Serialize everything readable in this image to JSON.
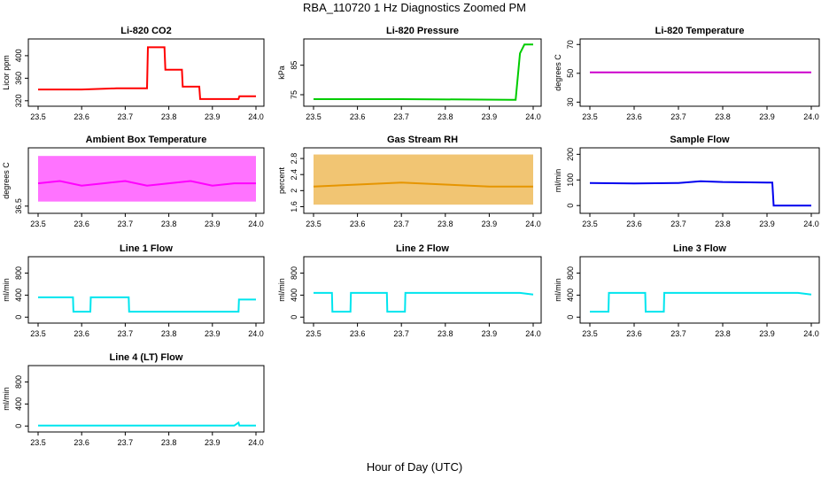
{
  "page": {
    "title": "RBA_110720  1 Hz Diagnostics Zoomed PM",
    "xlabel": "Hour of Day (UTC)"
  },
  "chart_data": [
    {
      "type": "line",
      "title": "Li-820 CO2",
      "ylabel": "Licor ppm",
      "xlim": [
        23.5,
        24.0
      ],
      "xticks": [
        23.5,
        23.6,
        23.7,
        23.8,
        23.9,
        24.0
      ],
      "ylim": [
        315,
        425
      ],
      "yticks": [
        320,
        360,
        400
      ],
      "series": [
        {
          "color": "#ff0000",
          "x": [
            23.5,
            23.6,
            23.68,
            23.75,
            23.752,
            23.79,
            23.792,
            23.83,
            23.832,
            23.87,
            23.872,
            23.96,
            23.962,
            24.0
          ],
          "y": [
            340,
            340,
            342,
            342,
            415,
            415,
            375,
            375,
            345,
            345,
            323,
            323,
            328,
            328
          ]
        }
      ]
    },
    {
      "type": "line",
      "title": "Li-820 Pressure",
      "ylabel": "kPa",
      "xlim": [
        23.5,
        24.0
      ],
      "xticks": [
        23.5,
        23.6,
        23.7,
        23.8,
        23.9,
        24.0
      ],
      "ylim": [
        72,
        93
      ],
      "yticks": [
        75,
        85
      ],
      "series": [
        {
          "color": "#00cc00",
          "x": [
            23.5,
            23.7,
            23.95,
            23.96,
            23.97,
            23.98,
            24.0
          ],
          "y": [
            73.5,
            73.5,
            73.3,
            73.3,
            89,
            92,
            92
          ]
        }
      ]
    },
    {
      "type": "line",
      "title": "Li-820 Temperature",
      "ylabel": "degrees C",
      "xlim": [
        23.5,
        24.0
      ],
      "xticks": [
        23.5,
        23.6,
        23.7,
        23.8,
        23.9,
        24.0
      ],
      "ylim": [
        29,
        72
      ],
      "yticks": [
        30,
        50,
        70
      ],
      "series": [
        {
          "color": "#cc00cc",
          "x": [
            23.5,
            24.0
          ],
          "y": [
            50.7,
            50.7
          ]
        }
      ]
    },
    {
      "type": "line",
      "title": "Ambient Box Temperature",
      "ylabel": "degrees C",
      "xlim": [
        23.5,
        24.0
      ],
      "xticks": [
        23.5,
        23.6,
        23.7,
        23.8,
        23.9,
        24.0
      ],
      "ylim": [
        36.4,
        37.72
      ],
      "yticks": [
        36.5
      ],
      "series": [
        {
          "color": "#ff00ff",
          "x": [
            23.5,
            23.55,
            23.6,
            23.65,
            23.7,
            23.75,
            23.8,
            23.85,
            23.9,
            23.95,
            24.0
          ],
          "y": [
            37.0,
            37.05,
            36.95,
            37.0,
            37.05,
            36.95,
            37.0,
            37.05,
            36.95,
            37.0,
            37.0
          ],
          "band": [
            36.6,
            37.6
          ]
        }
      ]
    },
    {
      "type": "line",
      "title": "Gas Stream RH",
      "ylabel": "percent",
      "xlim": [
        23.5,
        24.0
      ],
      "xticks": [
        23.5,
        23.6,
        23.7,
        23.8,
        23.9,
        24.0
      ],
      "ylim": [
        1.5,
        3.0
      ],
      "yticks": [
        1.6,
        2.0,
        2.4,
        2.8
      ],
      "series": [
        {
          "color": "#e69500",
          "x": [
            23.5,
            23.6,
            23.7,
            23.8,
            23.9,
            24.0
          ],
          "y": [
            2.1,
            2.15,
            2.2,
            2.15,
            2.1,
            2.1
          ],
          "band": [
            1.65,
            2.9
          ]
        }
      ]
    },
    {
      "type": "line",
      "title": "Sample Flow",
      "ylabel": "ml/min",
      "xlim": [
        23.5,
        24.0
      ],
      "xticks": [
        23.5,
        23.6,
        23.7,
        23.8,
        23.9,
        24.0
      ],
      "ylim": [
        -20,
        215
      ],
      "yticks": [
        0,
        100,
        200
      ],
      "series": [
        {
          "color": "#0000ee",
          "x": [
            23.5,
            23.6,
            23.7,
            23.75,
            23.8,
            23.9,
            23.912,
            23.915,
            24.0
          ],
          "y": [
            88,
            86,
            88,
            95,
            92,
            90,
            90,
            0,
            0
          ]
        }
      ]
    },
    {
      "type": "line",
      "title": "Line 1 Flow",
      "ylabel": "ml/min",
      "xlim": [
        23.5,
        24.0
      ],
      "xticks": [
        23.5,
        23.6,
        23.7,
        23.8,
        23.9,
        24.0
      ],
      "ylim": [
        -60,
        1050
      ],
      "yticks": [
        0,
        400,
        800
      ],
      "series": [
        {
          "color": "#00e5ee",
          "x": [
            23.5,
            23.58,
            23.581,
            23.62,
            23.621,
            23.708,
            23.709,
            23.96,
            23.961,
            24.0
          ],
          "y": [
            360,
            360,
            100,
            100,
            360,
            360,
            100,
            100,
            320,
            320
          ]
        }
      ]
    },
    {
      "type": "line",
      "title": "Line 2 Flow",
      "ylabel": "ml/min",
      "xlim": [
        23.5,
        24.0
      ],
      "xticks": [
        23.5,
        23.6,
        23.7,
        23.8,
        23.9,
        24.0
      ],
      "ylim": [
        -60,
        1050
      ],
      "yticks": [
        0,
        400,
        800
      ],
      "series": [
        {
          "color": "#00e5ee",
          "x": [
            23.5,
            23.542,
            23.543,
            23.584,
            23.585,
            23.667,
            23.668,
            23.708,
            23.709,
            23.97,
            24.0
          ],
          "y": [
            440,
            440,
            100,
            100,
            440,
            440,
            100,
            100,
            440,
            440,
            410
          ]
        }
      ]
    },
    {
      "type": "line",
      "title": "Line 3 Flow",
      "ylabel": "ml/min",
      "xlim": [
        23.5,
        24.0
      ],
      "xticks": [
        23.5,
        23.6,
        23.7,
        23.8,
        23.9,
        24.0
      ],
      "ylim": [
        -60,
        1050
      ],
      "yticks": [
        0,
        400,
        800
      ],
      "series": [
        {
          "color": "#00e5ee",
          "x": [
            23.5,
            23.501,
            23.542,
            23.543,
            23.625,
            23.626,
            23.667,
            23.668,
            23.97,
            24.0
          ],
          "y": [
            100,
            100,
            100,
            440,
            440,
            100,
            100,
            440,
            440,
            410
          ]
        }
      ]
    },
    {
      "type": "line",
      "title": "Line 4 (LT) Flow",
      "ylabel": "ml/min",
      "xlim": [
        23.5,
        24.0
      ],
      "xticks": [
        23.5,
        23.6,
        23.7,
        23.8,
        23.9,
        24.0
      ],
      "ylim": [
        -60,
        1050
      ],
      "yticks": [
        0,
        400,
        800
      ],
      "series": [
        {
          "color": "#00e5ee",
          "x": [
            23.5,
            23.95,
            23.96,
            23.962,
            23.97,
            24.0
          ],
          "y": [
            8,
            8,
            60,
            8,
            8,
            8
          ]
        }
      ]
    }
  ]
}
